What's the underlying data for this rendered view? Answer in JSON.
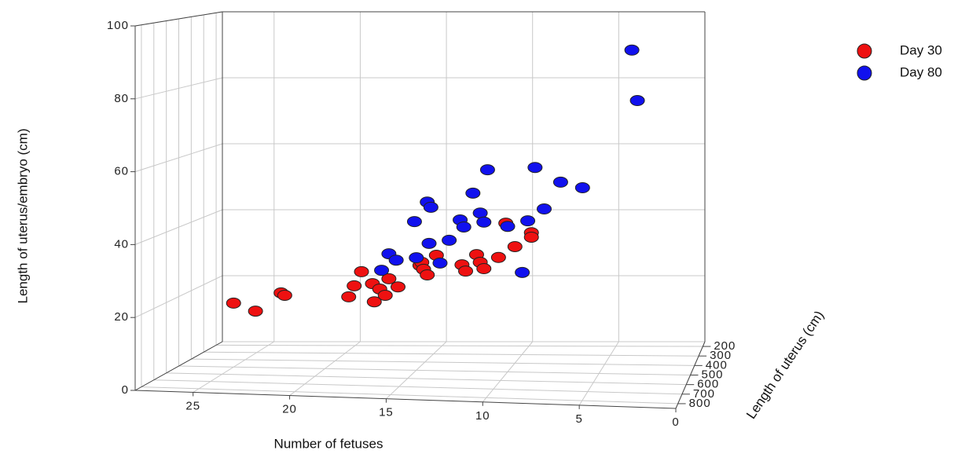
{
  "chart_data": {
    "type": "scatter3d",
    "x_label": "Number of fetuses",
    "y_label": "Length of uterus (cm)",
    "z_label": "Length of uterus/embryo (cm)",
    "xlim": [
      28,
      0
    ],
    "ylim": [
      850,
      150
    ],
    "zlim": [
      0,
      100
    ],
    "xticks": [
      25,
      20,
      15,
      10,
      5,
      0
    ],
    "yticks": [
      200,
      300,
      400,
      500,
      600,
      700,
      800
    ],
    "zticks": [
      0,
      20,
      40,
      60,
      80,
      100
    ],
    "grid": true,
    "legend": "upper right",
    "series": [
      {
        "name": "Day 30",
        "color": "#ee1111",
        "x": [
          25.0,
          23.8,
          22.4,
          22.2,
          18.7,
          18.4,
          18.0,
          17.4,
          17.3,
          17.0,
          16.7,
          16.5,
          16.0,
          14.8,
          14.7,
          14.6,
          14.4,
          13.9,
          12.5,
          12.3,
          11.7,
          11.5,
          11.3,
          10.5,
          10.1,
          9.6,
          8.7,
          8.7
        ],
        "y": [
          500,
          500,
          500,
          500,
          500,
          500,
          500,
          500,
          500,
          500,
          500,
          500,
          500,
          500,
          500,
          500,
          500,
          500,
          500,
          500,
          500,
          500,
          500,
          500,
          500,
          500,
          500,
          500
        ],
        "z": [
          18.4,
          16.2,
          21.6,
          20.9,
          20.8,
          24.0,
          28.1,
          24.7,
          19.5,
          23.2,
          21.4,
          26.2,
          23.9,
          30.2,
          31.1,
          29.1,
          27.5,
          33.2,
          30.6,
          28.8,
          33.6,
          31.4,
          29.6,
          32.9,
          42.8,
          36.1,
          40.2,
          38.9
        ]
      },
      {
        "name": "Day 80",
        "color": "#1111ee",
        "x": [
          3.2,
          2.9,
          11.1,
          8.5,
          7.1,
          5.9,
          14.4,
          14.2,
          11.9,
          15.1,
          12.6,
          12.4,
          11.5,
          11.3,
          10.0,
          8.9,
          8.0,
          16.5,
          16.1,
          15.0,
          14.3,
          16.9,
          13.7,
          13.2,
          9.2
        ],
        "y": [
          500,
          500,
          500,
          500,
          500,
          500,
          500,
          500,
          500,
          500,
          500,
          500,
          500,
          500,
          500,
          500,
          500,
          500,
          500,
          500,
          500,
          500,
          500,
          500,
          500
        ],
        "z": [
          93.3,
          78.8,
          58.1,
          59.0,
          54.9,
          53.4,
          48.5,
          47.0,
          51.3,
          42.8,
          43.5,
          41.5,
          45.6,
          43.0,
          41.9,
          43.6,
          47.1,
          33.4,
          31.6,
          32.4,
          36.6,
          28.6,
          31.0,
          37.6,
          28.7
        ]
      }
    ]
  }
}
